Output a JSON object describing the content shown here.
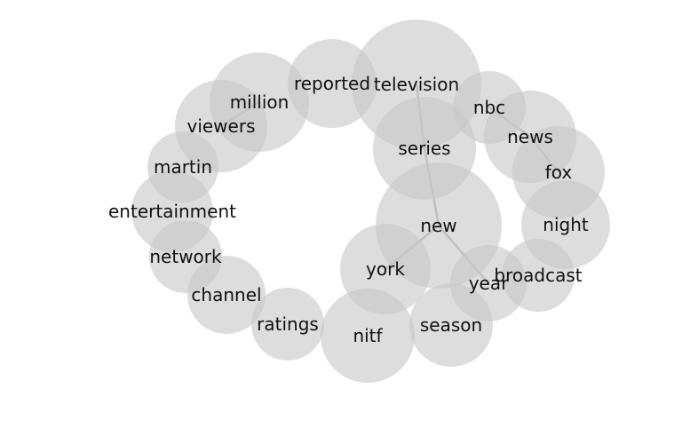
{
  "words": [
    "television",
    "reported",
    "million",
    "viewers",
    "martin",
    "entertainment",
    "network",
    "channel",
    "ratings",
    "nitf",
    "season",
    "year",
    "broadcast",
    "night",
    "fox",
    "news",
    "nbc",
    "series",
    "new",
    "york"
  ],
  "links": [
    [
      "million",
      "viewers"
    ],
    [
      "nbc",
      "news"
    ],
    [
      "news",
      "fox"
    ],
    [
      "television",
      "series"
    ],
    [
      "series",
      "new"
    ],
    [
      "new",
      "york"
    ],
    [
      "new",
      "year"
    ]
  ],
  "colors": {
    "bubble": "#c8c8c8",
    "edge": "#9a9a9a",
    "text": "#111111"
  }
}
